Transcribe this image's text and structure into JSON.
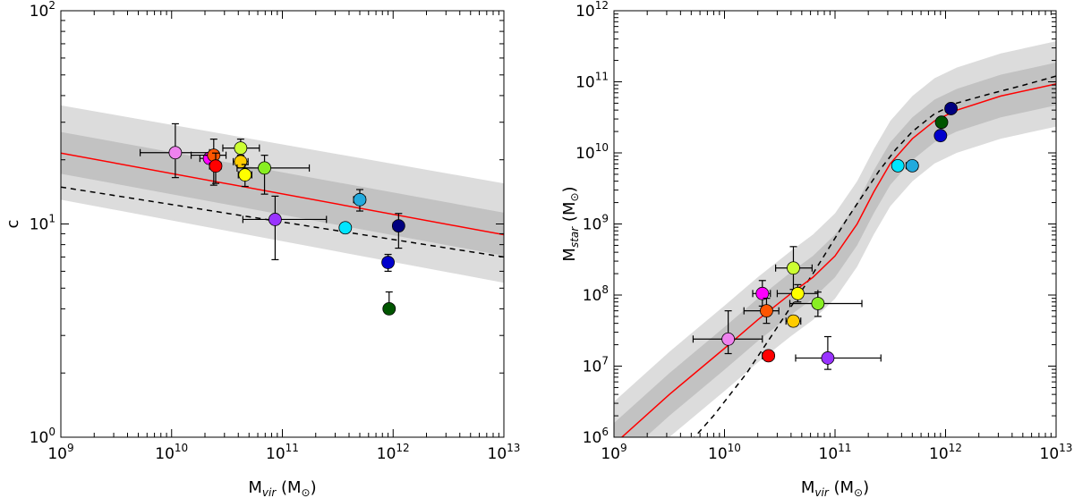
{
  "chart_data": [
    {
      "type": "scatter",
      "title": "",
      "xlabel": "M_vir (M_⊙)",
      "xlabel_main": "M",
      "xlabel_sub": "vir",
      "xlabel_unit_open": " (M",
      "xlabel_unit_sub": "⊙",
      "xlabel_unit_close": ")",
      "ylabel": "c",
      "x_scale": "log",
      "y_scale": "log",
      "xlim": [
        1000000000.0,
        10000000000000.0
      ],
      "ylim": [
        1,
        100
      ],
      "x_ticks": [
        {
          "base": "10",
          "exp": "9"
        },
        {
          "base": "10",
          "exp": "10"
        },
        {
          "base": "10",
          "exp": "11"
        },
        {
          "base": "10",
          "exp": "12"
        },
        {
          "base": "10",
          "exp": "13"
        }
      ],
      "y_ticks": [
        {
          "base": "10",
          "exp": "0"
        },
        {
          "base": "10",
          "exp": "1"
        },
        {
          "base": "10",
          "exp": "2"
        }
      ],
      "curves": {
        "red_fit": {
          "color": "#ff0000",
          "style": "solid",
          "x": [
            1000000000.0,
            10000000000000.0
          ],
          "y": [
            21.5,
            8.9
          ]
        },
        "black_dashed": {
          "color": "#000000",
          "style": "dashed",
          "x": [
            1000000000.0,
            10000000000000.0
          ],
          "y": [
            14.9,
            7.0
          ]
        }
      },
      "bands": {
        "outer": {
          "color": "#dcdcdc",
          "x": [
            1000000000.0,
            10000000000000.0
          ],
          "y_low": [
            13.0,
            5.3
          ],
          "y_high": [
            36.0,
            15.5
          ]
        },
        "inner": {
          "color": "#c2c2c2",
          "x": [
            1000000000.0,
            10000000000000.0
          ],
          "y_low": [
            17.2,
            7.1
          ],
          "y_high": [
            27.0,
            11.3
          ]
        }
      },
      "points": [
        {
          "x": 10800000000.0,
          "y": 21.6,
          "color": "#ee82ee",
          "xlo": 5200000000.0,
          "xhi": 22000000000.0,
          "ylo": 16.5,
          "yhi": 29.5
        },
        {
          "x": 22000000000.0,
          "y": 20.3,
          "color": "#ff00ff",
          "xlo": 18000000000.0,
          "xhi": 26000000000.0,
          "ylo": 19.5,
          "yhi": 21.0
        },
        {
          "x": 24000000000.0,
          "y": 21.0,
          "color": "#ff5500",
          "xlo": 15000000000.0,
          "xhi": 31000000000.0,
          "ylo": 15.2,
          "yhi": 25.0
        },
        {
          "x": 25000000000.0,
          "y": 18.7,
          "color": "#ff0000",
          "xlo": 22000000000.0,
          "xhi": 28000000000.0,
          "ylo": 15.5,
          "yhi": 21.5
        },
        {
          "x": 42000000000.0,
          "y": 22.7,
          "color": "#ccff33",
          "xlo": 29000000000.0,
          "xhi": 62000000000.0,
          "ylo": 21.0,
          "yhi": 25.0
        },
        {
          "x": 42000000000.0,
          "y": 19.6,
          "color": "#ffcc00",
          "xlo": 36000000000.0,
          "xhi": 49000000000.0,
          "ylo": 18.5,
          "yhi": 20.8
        },
        {
          "x": 46000000000.0,
          "y": 17.0,
          "color": "#ffff00",
          "xlo": 40000000000.0,
          "xhi": 53000000000.0,
          "ylo": 15.0,
          "yhi": 19.0
        },
        {
          "x": 69000000000.0,
          "y": 18.3,
          "color": "#88ee22",
          "xlo": 39000000000.0,
          "xhi": 175000000000.0,
          "ylo": 13.8,
          "yhi": 21.0
        },
        {
          "x": 86000000000.0,
          "y": 10.5,
          "color": "#9933ff",
          "xlo": 44000000000.0,
          "xhi": 250000000000.0,
          "ylo": 6.8,
          "yhi": 13.5
        },
        {
          "x": 370000000000.0,
          "y": 9.6,
          "color": "#00e5ff",
          "xlo": 340000000000.0,
          "xhi": 400000000000.0,
          "ylo": 9.3,
          "yhi": 9.9
        },
        {
          "x": 500000000000.0,
          "y": 13.0,
          "color": "#22aadd",
          "xlo": 440000000000.0,
          "xhi": 560000000000.0,
          "ylo": 11.5,
          "yhi": 14.5
        },
        {
          "x": 900000000000.0,
          "y": 6.6,
          "color": "#0000cc",
          "xlo": 820000000000.0,
          "xhi": 980000000000.0,
          "ylo": 6.0,
          "yhi": 7.2
        },
        {
          "x": 1120000000000.0,
          "y": 9.8,
          "color": "#000080",
          "xlo": 1000000000000.0,
          "xhi": 1240000000000.0,
          "ylo": 7.7,
          "yhi": 11.2
        },
        {
          "x": 920000000000.0,
          "y": 4.0,
          "color": "#005500",
          "xlo": 860000000000.0,
          "xhi": 980000000000.0,
          "ylo": 3.9,
          "yhi": 4.8
        }
      ]
    },
    {
      "type": "scatter",
      "title": "",
      "xlabel": "M_vir (M_⊙)",
      "xlabel_main": "M",
      "xlabel_sub": "vir",
      "xlabel_unit_open": " (M",
      "xlabel_unit_sub": "⊙",
      "xlabel_unit_close": ")",
      "ylabel": "M_star (M_⊙)",
      "ylabel_main": "M",
      "ylabel_sub": "star",
      "ylabel_unit_open": " (M",
      "ylabel_unit_sub": "⊙",
      "ylabel_unit_close": ")",
      "x_scale": "log",
      "y_scale": "log",
      "xlim": [
        1000000000.0,
        10000000000000.0
      ],
      "ylim": [
        1000000.0,
        1000000000000.0
      ],
      "x_ticks": [
        {
          "base": "10",
          "exp": "9"
        },
        {
          "base": "10",
          "exp": "10"
        },
        {
          "base": "10",
          "exp": "11"
        },
        {
          "base": "10",
          "exp": "12"
        },
        {
          "base": "10",
          "exp": "13"
        }
      ],
      "y_ticks": [
        {
          "base": "10",
          "exp": "6"
        },
        {
          "base": "10",
          "exp": "7"
        },
        {
          "base": "10",
          "exp": "8"
        },
        {
          "base": "10",
          "exp": "9"
        },
        {
          "base": "10",
          "exp": "10"
        },
        {
          "base": "10",
          "exp": "11"
        },
        {
          "base": "10",
          "exp": "12"
        }
      ],
      "curves": {
        "red_fit": {
          "color": "#ff0000",
          "style": "solid",
          "logx": [
            9.0,
            9.5,
            10.0,
            10.3,
            10.6,
            10.8,
            11.0,
            11.2,
            11.35,
            11.5,
            11.7,
            11.9,
            12.1,
            12.5,
            13.0
          ],
          "logy": [
            5.9,
            6.6,
            7.25,
            7.65,
            8.02,
            8.25,
            8.55,
            9.0,
            9.45,
            9.85,
            10.2,
            10.45,
            10.6,
            10.8,
            10.97
          ]
        },
        "black_dashed": {
          "color": "#000000",
          "style": "dashed",
          "logx": [
            9.7,
            9.9,
            10.2,
            10.5,
            10.8,
            11.1,
            11.4,
            11.55,
            11.7,
            11.9,
            12.1,
            12.4,
            12.7,
            13.0
          ],
          "logy": [
            5.95,
            6.3,
            6.9,
            7.6,
            8.3,
            9.05,
            9.75,
            10.05,
            10.3,
            10.55,
            10.7,
            10.83,
            10.95,
            11.08
          ]
        }
      },
      "bands": {
        "outer": {
          "color": "#dcdcdc",
          "halfwidth_dex": 0.6
        },
        "inner": {
          "color": "#c2c2c2",
          "halfwidth_dex": 0.3
        }
      },
      "points": [
        {
          "x": 10800000000.0,
          "y": 24000000.0,
          "color": "#ee82ee",
          "xlo": 5200000000.0,
          "xhi": 22000000000.0,
          "ylo": 15000000.0,
          "yhi": 60000000.0
        },
        {
          "x": 22000000000.0,
          "y": 105000000.0,
          "color": "#ff00ff",
          "xlo": 18000000000.0,
          "xhi": 26000000000.0,
          "ylo": 70000000.0,
          "yhi": 160000000.0
        },
        {
          "x": 24000000000.0,
          "y": 60000000.0,
          "color": "#ff5500",
          "xlo": 15000000000.0,
          "xhi": 31000000000.0,
          "ylo": 40000000.0,
          "yhi": 90000000.0
        },
        {
          "x": 25000000000.0,
          "y": 14000000.0,
          "color": "#ff0000",
          "xlo": 22000000000.0,
          "xhi": 28000000000.0,
          "ylo": 12000000.0,
          "yhi": 16000000.0
        },
        {
          "x": 42000000000.0,
          "y": 240000000.0,
          "color": "#ccff33",
          "xlo": 29000000000.0,
          "xhi": 62000000000.0,
          "ylo": 120000000.0,
          "yhi": 480000000.0
        },
        {
          "x": 42000000000.0,
          "y": 43000000.0,
          "color": "#ffcc00",
          "xlo": 36000000000.0,
          "xhi": 49000000000.0,
          "ylo": 37000000.0,
          "yhi": 50000000.0
        },
        {
          "x": 46000000000.0,
          "y": 105000000.0,
          "color": "#ffff00",
          "xlo": 30000000000.0,
          "xhi": 70000000000.0,
          "ylo": 80000000.0,
          "yhi": 140000000.0
        },
        {
          "x": 70000000000.0,
          "y": 76000000.0,
          "color": "#88ee22",
          "xlo": 39000000000.0,
          "xhi": 175000000000.0,
          "ylo": 50000000.0,
          "yhi": 110000000.0
        },
        {
          "x": 86000000000.0,
          "y": 13000000.0,
          "color": "#9933ff",
          "xlo": 44000000000.0,
          "xhi": 260000000000.0,
          "ylo": 9000000.0,
          "yhi": 26000000.0
        },
        {
          "x": 370000000000.0,
          "y": 6600000000.0,
          "color": "#00e5ff",
          "xlo": 340000000000.0,
          "xhi": 400000000000.0,
          "ylo": 6000000000.0,
          "yhi": 7200000000.0
        },
        {
          "x": 500000000000.0,
          "y": 6600000000.0,
          "color": "#22aadd",
          "xlo": 440000000000.0,
          "xhi": 560000000000.0,
          "ylo": 6000000000.0,
          "yhi": 7200000000.0
        },
        {
          "x": 900000000000.0,
          "y": 17500000000.0,
          "color": "#0000cc",
          "xlo": 820000000000.0,
          "xhi": 980000000000.0,
          "ylo": 15500000000.0,
          "yhi": 19500000000.0
        },
        {
          "x": 920000000000.0,
          "y": 27000000000.0,
          "color": "#005500",
          "xlo": 860000000000.0,
          "xhi": 980000000000.0,
          "ylo": 25000000000.0,
          "yhi": 29000000000.0
        },
        {
          "x": 1120000000000.0,
          "y": 42000000000.0,
          "color": "#000080",
          "xlo": 1000000000000.0,
          "xhi": 1240000000000.0,
          "ylo": 38000000000.0,
          "yhi": 46000000000.0
        }
      ]
    }
  ]
}
